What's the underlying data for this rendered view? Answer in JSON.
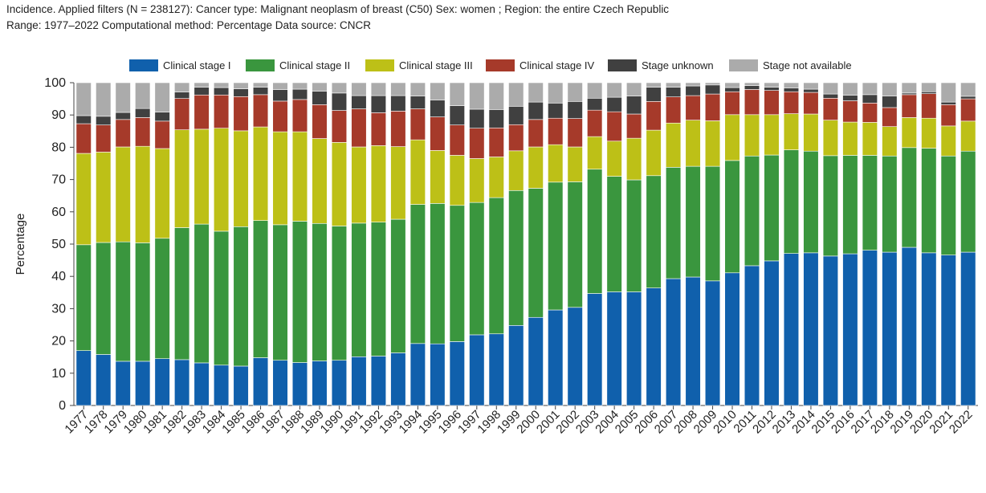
{
  "header": {
    "line1": "Incidence. Applied filters (N = 238127): Cancer type: Malignant neoplasm of breast (C50) Sex: women ; Region: the entire Czech Republic",
    "line2": "Range: 1977–2022 Computational method: Percentage Data source: CNCR"
  },
  "chart_data": {
    "type": "bar",
    "stacked": true,
    "ylabel": "Percentage",
    "ylim": [
      0,
      100
    ],
    "yticks": [
      0,
      10,
      20,
      30,
      40,
      50,
      60,
      70,
      80,
      90,
      100
    ],
    "legend_position": "top",
    "categories": [
      "1977",
      "1978",
      "1979",
      "1980",
      "1981",
      "1982",
      "1983",
      "1984",
      "1985",
      "1986",
      "1987",
      "1988",
      "1989",
      "1990",
      "1991",
      "1992",
      "1993",
      "1994",
      "1995",
      "1996",
      "1997",
      "1998",
      "1999",
      "2000",
      "2001",
      "2002",
      "2003",
      "2004",
      "2005",
      "2006",
      "2007",
      "2008",
      "2009",
      "2010",
      "2011",
      "2012",
      "2013",
      "2014",
      "2015",
      "2016",
      "2017",
      "2018",
      "2019",
      "2020",
      "2021",
      "2022"
    ],
    "series": [
      {
        "name": "Clinical stage I",
        "color": "#1060AC",
        "values": [
          17,
          15.8,
          13.7,
          13.7,
          14.5,
          14.2,
          13.2,
          12.5,
          12.2,
          14.8,
          14,
          13.3,
          13.8,
          14,
          15.1,
          15.3,
          16.3,
          19.2,
          19.1,
          19.8,
          21.9,
          22.2,
          24.8,
          27.3,
          29.6,
          30.4,
          34.7,
          35.2,
          35.2,
          36.4,
          39.3,
          39.8,
          38.6,
          41.1,
          43.3,
          44.8,
          47.1,
          47.3,
          46.3,
          47,
          48.1,
          47.5,
          49,
          47.3,
          46.6,
          47.5
        ]
      },
      {
        "name": "Clinical stage II",
        "color": "#3A963E",
        "values": [
          32.8,
          34.7,
          37,
          36.7,
          37.3,
          40.9,
          43,
          41.5,
          43.2,
          42.5,
          42,
          43.8,
          42.6,
          41.6,
          41.4,
          41.5,
          41.4,
          43.1,
          43.5,
          42.2,
          41,
          42.2,
          41.8,
          40,
          39.6,
          38.9,
          38.5,
          35.8,
          34.7,
          34.8,
          34.5,
          34.3,
          35.5,
          34.8,
          34,
          32.8,
          32.1,
          31.5,
          31.1,
          30.5,
          29.4,
          29.8,
          30.9,
          32.4,
          30.7,
          31.3
        ]
      },
      {
        "name": "Clinical stage III",
        "color": "#BDC017",
        "values": [
          28.3,
          28,
          29.4,
          29.9,
          27.8,
          30.3,
          29.4,
          31.9,
          29.7,
          29,
          28.8,
          27.7,
          26.3,
          25.9,
          23.6,
          23.7,
          22.5,
          20,
          16.4,
          15.5,
          13.6,
          12.6,
          12.3,
          12.8,
          11.6,
          10.8,
          10.1,
          10.9,
          12.9,
          14.1,
          13.7,
          14.3,
          14.1,
          14.2,
          12.8,
          12.5,
          11.2,
          11.5,
          11,
          10.3,
          10.2,
          9.1,
          9.3,
          9.3,
          9.3,
          9.3
        ]
      },
      {
        "name": "Clinical stage IV",
        "color": "#A63A2A",
        "values": [
          9.2,
          8.4,
          8.5,
          8.9,
          8.5,
          9.7,
          10.6,
          10.3,
          10.6,
          10,
          9.5,
          10,
          10.5,
          9.9,
          11.8,
          10.2,
          11,
          9.6,
          10.4,
          9.4,
          9.4,
          9,
          8.1,
          8.5,
          8.2,
          8.8,
          8.2,
          9.1,
          7.5,
          8.9,
          8.1,
          7.6,
          8.3,
          7.1,
          7.8,
          7.5,
          6.8,
          6.7,
          6.8,
          6.6,
          6,
          5.9,
          7.1,
          7.6,
          6.6,
          6.9
        ]
      },
      {
        "name": "Stage unknown",
        "color": "#404040",
        "values": [
          2.5,
          2.7,
          2.2,
          2.8,
          2.8,
          2,
          2.4,
          2.3,
          2.4,
          2.3,
          3.6,
          3.2,
          4.2,
          5.4,
          4.1,
          5.3,
          4.8,
          4,
          5.2,
          6,
          5.9,
          5.7,
          5.7,
          5.4,
          4.7,
          5.3,
          3.7,
          4.5,
          5.6,
          4.4,
          3,
          3,
          2.8,
          1.3,
          1.2,
          1,
          1.2,
          1,
          1.3,
          1.7,
          2.6,
          3.6,
          0.5,
          0.6,
          0.8,
          0.8
        ]
      },
      {
        "name": "Stage not available",
        "color": "#ABABAB",
        "values": [
          10.2,
          10.4,
          9.2,
          8,
          9.1,
          2.9,
          1.4,
          1.5,
          1.9,
          1.4,
          2.1,
          2,
          2.6,
          3.2,
          4,
          4,
          4,
          4.1,
          5.4,
          7.1,
          8.2,
          8.3,
          7.3,
          6,
          6.3,
          5.8,
          4.8,
          4.5,
          4.1,
          1.4,
          1.4,
          1,
          0.7,
          1.5,
          0.9,
          1.4,
          1.6,
          2,
          3.5,
          3.9,
          3.7,
          4.1,
          3.2,
          2.8,
          6,
          4.2
        ]
      }
    ]
  }
}
